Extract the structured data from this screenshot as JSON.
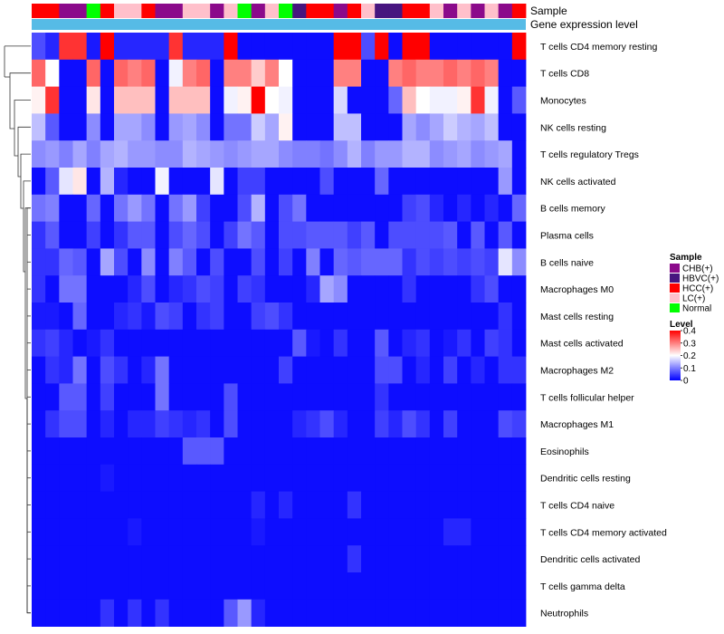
{
  "chart_data": {
    "type": "heatmap",
    "title": "",
    "annotation_rows": [
      {
        "key": "sample",
        "label": "Sample"
      },
      {
        "key": "gene_expression",
        "label": "Gene expression level"
      }
    ],
    "column_samples": [
      "HCC(+)",
      "HCC(+)",
      "CHB(+)",
      "CHB(+)",
      "Normal",
      "HCC(+)",
      "LC(+)",
      "LC(+)",
      "HCC(+)",
      "CHB(+)",
      "CHB(+)",
      "LC(+)",
      "LC(+)",
      "CHB(+)",
      "LC(+)",
      "Normal",
      "CHB(+)",
      "LC(+)",
      "Normal",
      "HBVC(+)",
      "HCC(+)",
      "HCC(+)",
      "CHB(+)",
      "HCC(+)",
      "LC(+)",
      "HBVC(+)",
      "HBVC(+)",
      "HCC(+)",
      "HCC(+)",
      "LC(+)",
      "CHB(+)",
      "LC(+)",
      "CHB(+)",
      "LC(+)",
      "CHB(+)",
      "HCC(+)"
    ],
    "gene_expression_color": "#56bbe6",
    "rows": [
      "T cells CD4 memory resting",
      "T cells CD8",
      "Monocytes",
      "NK cells resting",
      "T cells regulatory  Tregs",
      "NK cells activated",
      "B cells memory",
      "Plasma cells",
      "B cells naive",
      "Macrophages M0",
      "Mast cells resting",
      "Mast cells activated",
      "Macrophages M2",
      "T cells follicular helper",
      "Macrophages M1",
      "Eosinophils",
      "Dendritic cells resting",
      "T cells CD4 naive",
      "T cells CD4 memory activated",
      "Dendritic cells activated",
      "T cells gamma delta",
      "Neutrophils"
    ],
    "values": [
      [
        0.06,
        0.03,
        0.36,
        0.36,
        0.02,
        0.42,
        0.03,
        0.03,
        0.03,
        0.03,
        0.36,
        0.03,
        0.03,
        0.03,
        0.44,
        0.01,
        0.01,
        0.01,
        0.01,
        0.01,
        0.01,
        0.01,
        0.43,
        0.43,
        0.06,
        0.43,
        0.01,
        0.43,
        0.43,
        0.01,
        0.01,
        0.01,
        0.01,
        0.01,
        0.01,
        0.43
      ],
      [
        0.32,
        0.2,
        0.01,
        0.01,
        0.32,
        0.01,
        0.32,
        0.3,
        0.32,
        0.01,
        0.19,
        0.3,
        0.32,
        0.01,
        0.3,
        0.3,
        0.24,
        0.3,
        0.2,
        0.01,
        0.01,
        0.01,
        0.3,
        0.3,
        0.01,
        0.01,
        0.3,
        0.32,
        0.3,
        0.3,
        0.32,
        0.3,
        0.32,
        0.3,
        0.01,
        0.01
      ],
      [
        0.21,
        0.36,
        0.01,
        0.01,
        0.22,
        0.01,
        0.25,
        0.25,
        0.25,
        0.01,
        0.25,
        0.25,
        0.25,
        0.01,
        0.19,
        0.21,
        0.44,
        0.2,
        0.19,
        0.01,
        0.01,
        0.01,
        0.17,
        0.01,
        0.01,
        0.01,
        0.08,
        0.25,
        0.2,
        0.19,
        0.19,
        0.21,
        0.36,
        0.19,
        0.01,
        0.07
      ],
      [
        0.15,
        0.07,
        0.01,
        0.01,
        0.11,
        0.01,
        0.13,
        0.13,
        0.11,
        0.01,
        0.12,
        0.13,
        0.11,
        0.01,
        0.09,
        0.09,
        0.16,
        0.13,
        0.21,
        0.01,
        0.01,
        0.01,
        0.15,
        0.15,
        0.01,
        0.01,
        0.01,
        0.13,
        0.11,
        0.13,
        0.16,
        0.14,
        0.13,
        0.15,
        0.01,
        0.01
      ],
      [
        0.11,
        0.12,
        0.1,
        0.13,
        0.1,
        0.13,
        0.14,
        0.12,
        0.12,
        0.11,
        0.11,
        0.14,
        0.13,
        0.12,
        0.11,
        0.12,
        0.13,
        0.13,
        0.11,
        0.1,
        0.1,
        0.09,
        0.11,
        0.14,
        0.1,
        0.12,
        0.12,
        0.14,
        0.14,
        0.11,
        0.12,
        0.13,
        0.11,
        0.12,
        0.13,
        0.01
      ],
      [
        0.01,
        0.07,
        0.18,
        0.22,
        0.01,
        0.14,
        0.03,
        0.01,
        0.01,
        0.19,
        0.01,
        0.01,
        0.01,
        0.18,
        0.01,
        0.05,
        0.05,
        0.01,
        0.01,
        0.01,
        0.01,
        0.06,
        0.01,
        0.01,
        0.01,
        0.08,
        0.01,
        0.01,
        0.01,
        0.01,
        0.01,
        0.01,
        0.01,
        0.01,
        0.12,
        0.01
      ],
      [
        0.09,
        0.1,
        0.01,
        0.01,
        0.08,
        0.01,
        0.09,
        0.12,
        0.09,
        0.01,
        0.09,
        0.12,
        0.05,
        0.01,
        0.01,
        0.06,
        0.14,
        0.01,
        0.06,
        0.09,
        0.01,
        0.01,
        0.01,
        0.01,
        0.01,
        0.01,
        0.01,
        0.05,
        0.06,
        0.03,
        0.01,
        0.03,
        0.01,
        0.03,
        0.01,
        0.08
      ],
      [
        0.04,
        0.07,
        0.01,
        0.01,
        0.05,
        0.01,
        0.04,
        0.07,
        0.07,
        0.01,
        0.06,
        0.08,
        0.06,
        0.01,
        0.05,
        0.09,
        0.07,
        0.01,
        0.06,
        0.06,
        0.07,
        0.07,
        0.07,
        0.05,
        0.07,
        0.01,
        0.06,
        0.06,
        0.06,
        0.06,
        0.07,
        0.01,
        0.07,
        0.01,
        0.07,
        0.01
      ],
      [
        0.04,
        0.04,
        0.08,
        0.07,
        0.01,
        0.13,
        0.06,
        0.01,
        0.11,
        0.01,
        0.1,
        0.07,
        0.01,
        0.06,
        0.01,
        0.01,
        0.06,
        0.01,
        0.05,
        0.01,
        0.1,
        0.01,
        0.08,
        0.07,
        0.08,
        0.08,
        0.08,
        0.04,
        0.06,
        0.05,
        0.06,
        0.05,
        0.06,
        0.05,
        0.18,
        0.11
      ],
      [
        0.04,
        0.01,
        0.09,
        0.09,
        0.01,
        0.01,
        0.01,
        0.03,
        0.06,
        0.01,
        0.03,
        0.04,
        0.06,
        0.05,
        0.01,
        0.05,
        0.04,
        0.01,
        0.01,
        0.01,
        0.03,
        0.13,
        0.11,
        0.01,
        0.01,
        0.01,
        0.01,
        0.04,
        0.01,
        0.01,
        0.01,
        0.01,
        0.04,
        0.06,
        0.01,
        0.01
      ],
      [
        0.02,
        0.02,
        0.01,
        0.08,
        0.01,
        0.01,
        0.03,
        0.04,
        0.02,
        0.06,
        0.05,
        0.01,
        0.04,
        0.05,
        0.01,
        0.01,
        0.05,
        0.06,
        0.04,
        0.01,
        0.01,
        0.01,
        0.01,
        0.01,
        0.01,
        0.01,
        0.01,
        0.01,
        0.01,
        0.01,
        0.01,
        0.01,
        0.01,
        0.01,
        0.04,
        0.01
      ],
      [
        0.04,
        0.05,
        0.03,
        0.01,
        0.02,
        0.04,
        0.01,
        0.01,
        0.01,
        0.01,
        0.01,
        0.01,
        0.01,
        0.01,
        0.01,
        0.01,
        0.01,
        0.01,
        0.01,
        0.07,
        0.02,
        0.01,
        0.04,
        0.01,
        0.01,
        0.07,
        0.01,
        0.03,
        0.04,
        0.01,
        0.02,
        0.04,
        0.01,
        0.05,
        0.04,
        0.01
      ],
      [
        0.01,
        0.04,
        0.03,
        0.09,
        0.01,
        0.06,
        0.04,
        0.01,
        0.03,
        0.09,
        0.01,
        0.01,
        0.01,
        0.01,
        0.01,
        0.01,
        0.01,
        0.01,
        0.05,
        0.01,
        0.01,
        0.01,
        0.01,
        0.01,
        0.01,
        0.06,
        0.06,
        0.01,
        0.03,
        0.01,
        0.05,
        0.01,
        0.03,
        0.01,
        0.04,
        0.04
      ],
      [
        0.01,
        0.01,
        0.07,
        0.07,
        0.01,
        0.05,
        0.01,
        0.01,
        0.01,
        0.09,
        0.01,
        0.01,
        0.01,
        0.01,
        0.06,
        0.01,
        0.01,
        0.01,
        0.01,
        0.01,
        0.01,
        0.01,
        0.01,
        0.01,
        0.01,
        0.04,
        0.01,
        0.01,
        0.01,
        0.01,
        0.01,
        0.01,
        0.01,
        0.01,
        0.01,
        0.01
      ],
      [
        0.01,
        0.04,
        0.06,
        0.06,
        0.01,
        0.03,
        0.01,
        0.03,
        0.03,
        0.05,
        0.04,
        0.03,
        0.04,
        0.01,
        0.06,
        0.01,
        0.01,
        0.01,
        0.01,
        0.03,
        0.04,
        0.06,
        0.03,
        0.01,
        0.01,
        0.05,
        0.03,
        0.06,
        0.04,
        0.01,
        0.05,
        0.01,
        0.01,
        0.01,
        0.06,
        0.05
      ],
      [
        0.01,
        0.01,
        0.01,
        0.01,
        0.01,
        0.01,
        0.01,
        0.01,
        0.01,
        0.01,
        0.01,
        0.07,
        0.07,
        0.07,
        0.01,
        0.01,
        0.01,
        0.01,
        0.01,
        0.01,
        0.01,
        0.01,
        0.01,
        0.01,
        0.01,
        0.01,
        0.01,
        0.01,
        0.01,
        0.01,
        0.01,
        0.01,
        0.01,
        0.01,
        0.01,
        0.01
      ],
      [
        0.01,
        0.01,
        0.01,
        0.01,
        0.01,
        0.02,
        0.01,
        0.01,
        0.01,
        0.01,
        0.01,
        0.01,
        0.01,
        0.01,
        0.01,
        0.01,
        0.01,
        0.01,
        0.01,
        0.01,
        0.01,
        0.01,
        0.01,
        0.01,
        0.01,
        0.01,
        0.01,
        0.01,
        0.01,
        0.01,
        0.01,
        0.01,
        0.01,
        0.01,
        0.01,
        0.01
      ],
      [
        0.01,
        0.01,
        0.01,
        0.01,
        0.01,
        0.01,
        0.01,
        0.01,
        0.01,
        0.01,
        0.01,
        0.01,
        0.01,
        0.01,
        0.01,
        0.01,
        0.03,
        0.01,
        0.03,
        0.01,
        0.01,
        0.01,
        0.01,
        0.04,
        0.01,
        0.01,
        0.01,
        0.01,
        0.01,
        0.01,
        0.01,
        0.01,
        0.01,
        0.01,
        0.01,
        0.01
      ],
      [
        0.01,
        0.01,
        0.01,
        0.01,
        0.01,
        0.01,
        0.01,
        0.02,
        0.01,
        0.01,
        0.01,
        0.01,
        0.01,
        0.01,
        0.01,
        0.01,
        0.02,
        0.01,
        0.01,
        0.01,
        0.01,
        0.01,
        0.01,
        0.01,
        0.01,
        0.01,
        0.01,
        0.01,
        0.01,
        0.01,
        0.03,
        0.03,
        0.01,
        0.01,
        0.01,
        0.01
      ],
      [
        0.01,
        0.01,
        0.01,
        0.01,
        0.01,
        0.01,
        0.01,
        0.01,
        0.01,
        0.01,
        0.01,
        0.01,
        0.01,
        0.01,
        0.01,
        0.01,
        0.01,
        0.01,
        0.01,
        0.01,
        0.01,
        0.01,
        0.01,
        0.04,
        0.01,
        0.01,
        0.01,
        0.01,
        0.01,
        0.01,
        0.01,
        0.01,
        0.01,
        0.01,
        0.01,
        0.01
      ],
      [
        0.01,
        0.01,
        0.01,
        0.01,
        0.01,
        0.01,
        0.01,
        0.01,
        0.01,
        0.01,
        0.01,
        0.01,
        0.01,
        0.01,
        0.01,
        0.01,
        0.01,
        0.01,
        0.01,
        0.01,
        0.01,
        0.01,
        0.01,
        0.01,
        0.01,
        0.01,
        0.01,
        0.01,
        0.01,
        0.01,
        0.01,
        0.01,
        0.01,
        0.01,
        0.01,
        0.01
      ],
      [
        0.01,
        0.01,
        0.01,
        0.01,
        0.01,
        0.04,
        0.01,
        0.04,
        0.01,
        0.04,
        0.01,
        0.01,
        0.01,
        0.01,
        0.07,
        0.12,
        0.03,
        0.01,
        0.01,
        0.01,
        0.01,
        0.01,
        0.01,
        0.01,
        0.01,
        0.01,
        0.01,
        0.01,
        0.01,
        0.01,
        0.01,
        0.01,
        0.01,
        0.01,
        0.01,
        0.01
      ]
    ],
    "color_scale": {
      "min": 0,
      "max": 0.4,
      "stops": [
        {
          "value": 0,
          "color": "#0000ff"
        },
        {
          "value": 0.2,
          "color": "#ffffff"
        },
        {
          "value": 0.4,
          "color": "#ff0000"
        }
      ]
    },
    "legend": {
      "sample_title": "Sample",
      "sample_categories": [
        {
          "label": "CHB(+)",
          "color": "#8b0a8b"
        },
        {
          "label": "HBVC(+)",
          "color": "#47157f"
        },
        {
          "label": "HCC(+)",
          "color": "#ff0000"
        },
        {
          "label": "LC(+)",
          "color": "#ffc0cb"
        },
        {
          "label": "Normal",
          "color": "#00ff00"
        }
      ],
      "level_title": "Level",
      "level_ticks": [
        0.4,
        0.3,
        0.2,
        0.1,
        0
      ],
      "level_tick_labels": [
        "0.4",
        "0.3",
        "0.2",
        "0.1",
        "0"
      ]
    }
  }
}
